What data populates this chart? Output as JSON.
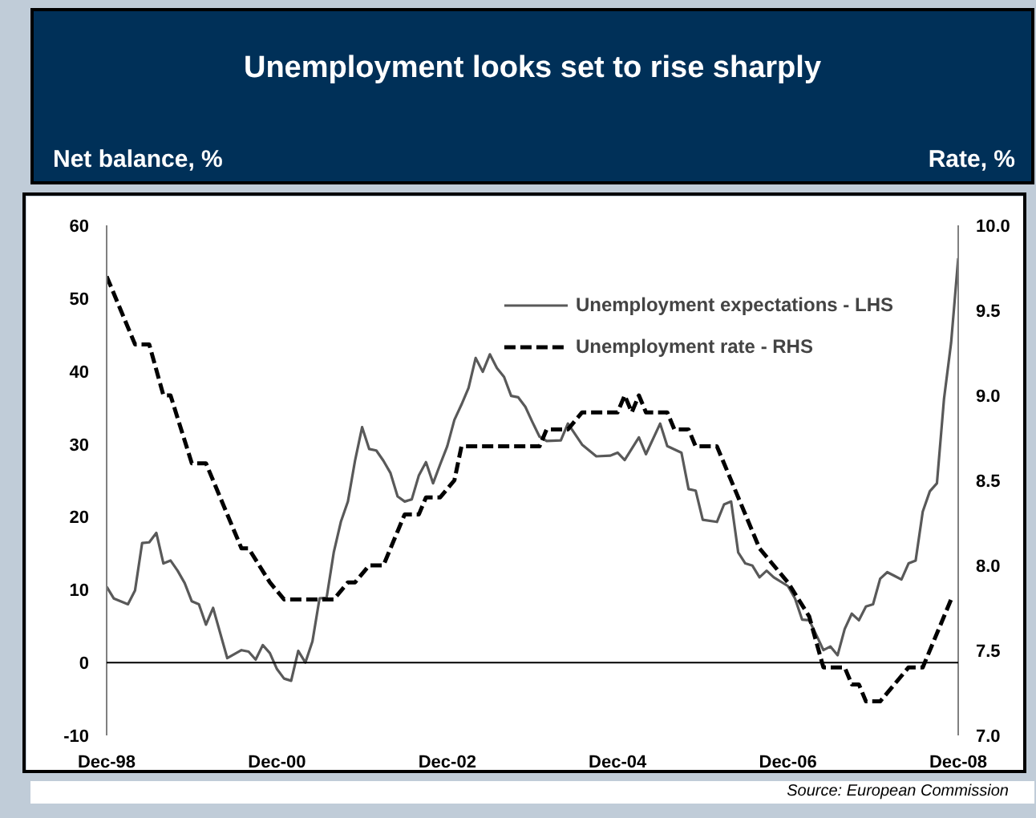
{
  "chart_data": {
    "type": "line",
    "title": "Unemployment looks set to rise sharply",
    "ylabel": "Net balance, %",
    "y2label": "Rate, %",
    "annotations": [
      "Source: European Commission"
    ],
    "xlim": [
      "1998-12",
      "2008-12"
    ],
    "xticks": [
      {
        "value": "1998-12",
        "label": "Dec-98"
      },
      {
        "value": "2000-12",
        "label": "Dec-00"
      },
      {
        "value": "2002-12",
        "label": "Dec-02"
      },
      {
        "value": "2004-12",
        "label": "Dec-04"
      },
      {
        "value": "2006-12",
        "label": "Dec-06"
      },
      {
        "value": "2008-12",
        "label": "Dec-08"
      }
    ],
    "ylim": [
      -10,
      60
    ],
    "yticks": [
      -10,
      0,
      10,
      20,
      30,
      40,
      50,
      60
    ],
    "y2lim": [
      7.0,
      10.0
    ],
    "y2ticks": [
      {
        "value": 7,
        "label": "7.0"
      },
      {
        "value": 7.5,
        "label": "7.5"
      },
      {
        "value": 8,
        "label": "8.0"
      },
      {
        "value": 8.5,
        "label": "8.5"
      },
      {
        "value": 9,
        "label": "9.0"
      },
      {
        "value": 9.5,
        "label": "9.5"
      },
      {
        "value": 10,
        "label": "10.0"
      }
    ],
    "ref_lines": [
      {
        "axis": "y",
        "value": 0,
        "color": "#000000"
      }
    ],
    "grid": false,
    "legend": "top right",
    "marker": "none",
    "series": [
      {
        "name": "Unemployment expectations - LHS",
        "color": "#595959",
        "line_style": "solid",
        "x": [
          "1998-12",
          "1999-01",
          "1999-03",
          "1999-04",
          "1999-05",
          "1999-06",
          "1999-07",
          "1999-08",
          "1999-09",
          "1999-10",
          "1999-11",
          "1999-12",
          "2000-01",
          "2000-02",
          "2000-03",
          "2000-05",
          "2000-07",
          "2000-08",
          "2000-09",
          "2000-10",
          "2000-11",
          "2000-12",
          "2001-01",
          "2001-02",
          "2001-03",
          "2001-04",
          "2001-05",
          "2001-06",
          "2001-07",
          "2001-08",
          "2001-09",
          "2001-10",
          "2001-11",
          "2001-12",
          "2002-01",
          "2002-02",
          "2002-03",
          "2002-04",
          "2002-05",
          "2002-06",
          "2002-07",
          "2002-08",
          "2002-09",
          "2002-10",
          "2002-11",
          "2002-12",
          "2003-01",
          "2003-02",
          "2003-03",
          "2003-04",
          "2003-05",
          "2003-06",
          "2003-07",
          "2003-08",
          "2003-09",
          "2003-10",
          "2003-11",
          "2003-12",
          "2004-01",
          "2004-02",
          "2004-04",
          "2004-05",
          "2004-07",
          "2004-09",
          "2004-11",
          "2004-12",
          "2005-01",
          "2005-03",
          "2005-04",
          "2005-06",
          "2005-07",
          "2005-09",
          "2005-10",
          "2005-11",
          "2005-12",
          "2006-02",
          "2006-03",
          "2006-04",
          "2006-05",
          "2006-06",
          "2006-07",
          "2006-08",
          "2006-09",
          "2006-10",
          "2006-12",
          "2007-01",
          "2007-02",
          "2007-03",
          "2007-04",
          "2007-05",
          "2007-06",
          "2007-07",
          "2007-08",
          "2007-09",
          "2007-10",
          "2007-11",
          "2007-12",
          "2008-01",
          "2008-02",
          "2008-03",
          "2008-04",
          "2008-05",
          "2008-06",
          "2008-07",
          "2008-08",
          "2008-09",
          "2008-10",
          "2008-11",
          "2008-12"
        ],
        "values": [
          10.4,
          8.8,
          8.0,
          9.9,
          16.4,
          16.5,
          17.8,
          13.6,
          14.0,
          12.6,
          10.9,
          8.4,
          8.0,
          5.2,
          7.5,
          0.6,
          1.7,
          1.5,
          0.4,
          2.4,
          1.3,
          -0.9,
          -2.2,
          -2.5,
          1.6,
          0.0,
          2.9,
          8.8,
          8.9,
          15.1,
          19.3,
          22.1,
          27.7,
          32.3,
          29.3,
          29.1,
          27.7,
          26.0,
          22.8,
          22.1,
          22.4,
          25.7,
          27.5,
          24.6,
          27.2,
          29.7,
          33.3,
          35.4,
          37.7,
          41.8,
          39.9,
          42.3,
          40.4,
          39.2,
          36.6,
          36.4,
          35.1,
          33.0,
          31.0,
          30.4,
          30.5,
          32.8,
          29.9,
          28.3,
          28.4,
          28.8,
          27.8,
          30.9,
          28.6,
          32.8,
          29.7,
          28.8,
          23.8,
          23.6,
          19.6,
          19.3,
          21.7,
          22.1,
          15.1,
          13.6,
          13.3,
          11.7,
          12.6,
          11.7,
          10.5,
          8.8,
          5.9,
          5.8,
          3.8,
          1.7,
          2.2,
          1.0,
          4.6,
          6.7,
          5.8,
          7.7,
          8.0,
          11.5,
          12.4,
          11.9,
          11.4,
          13.6,
          14.0,
          20.7,
          23.5,
          24.6,
          36.2,
          43.9,
          55.5
        ]
      },
      {
        "name": "Unemployment rate - RHS",
        "color": "#000000",
        "line_style": "dashed",
        "axis": "y2",
        "x": [
          "1998-12",
          "1999-04",
          "1999-06",
          "1999-08",
          "1999-09",
          "1999-12",
          "2000-02",
          "2000-07",
          "2000-08",
          "2000-11",
          "2001-01",
          "2001-08",
          "2001-10",
          "2001-11",
          "2002-01",
          "2002-03",
          "2002-06",
          "2002-08",
          "2002-09",
          "2002-11",
          "2003-01",
          "2003-02",
          "2004-01",
          "2004-02",
          "2004-05",
          "2004-07",
          "2004-12",
          "2005-01",
          "2005-02",
          "2005-03",
          "2005-04",
          "2005-07",
          "2005-08",
          "2005-10",
          "2005-11",
          "2006-02",
          "2006-05",
          "2006-08",
          "2006-10",
          "2006-12",
          "2007-03",
          "2007-05",
          "2007-08",
          "2007-09",
          "2007-10",
          "2007-11",
          "2008-01",
          "2008-03",
          "2008-05",
          "2008-07",
          "2008-11"
        ],
        "values": [
          9.7,
          9.3,
          9.3,
          9.0,
          9.0,
          8.6,
          8.6,
          8.1,
          8.1,
          7.9,
          7.8,
          7.8,
          7.9,
          7.9,
          8.0,
          8.0,
          8.3,
          8.3,
          8.4,
          8.4,
          8.5,
          8.7,
          8.7,
          8.8,
          8.8,
          8.9,
          8.9,
          9.0,
          8.9,
          9.0,
          8.9,
          8.9,
          8.8,
          8.8,
          8.7,
          8.7,
          8.4,
          8.1,
          8.0,
          7.9,
          7.7,
          7.4,
          7.4,
          7.3,
          7.3,
          7.2,
          7.2,
          7.3,
          7.4,
          7.4,
          7.8
        ]
      }
    ]
  }
}
